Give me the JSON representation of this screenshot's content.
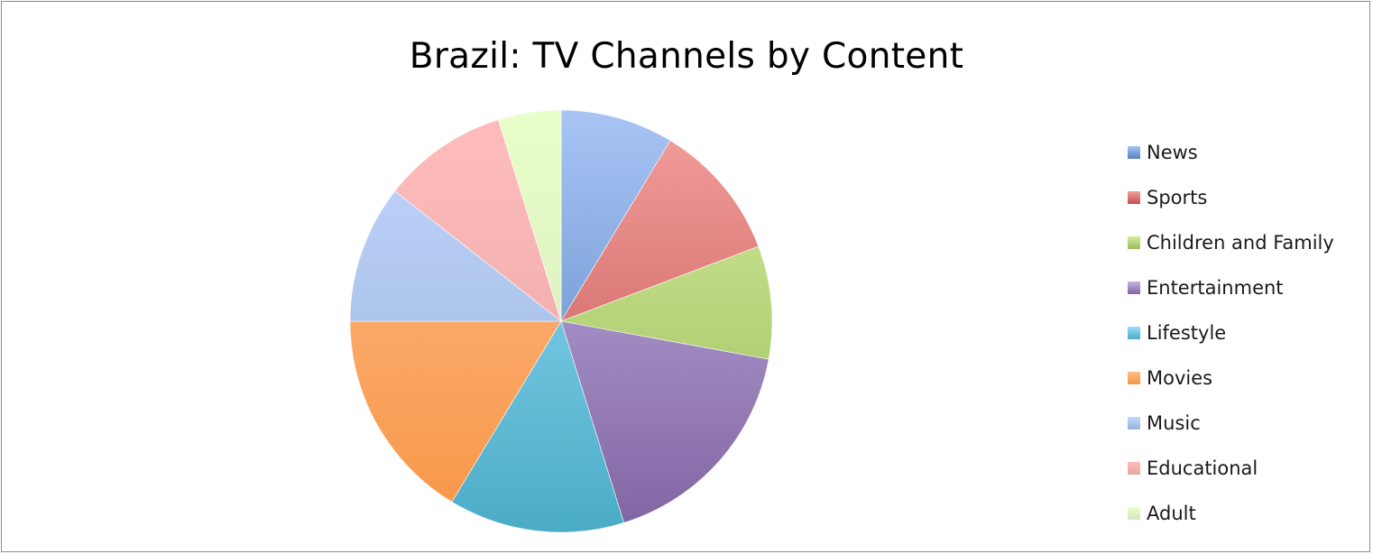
{
  "chart_data": {
    "type": "pie",
    "title": "Brazil: TV Channels by Content",
    "legend_position": "right",
    "series": [
      {
        "name": "News",
        "value": 9.0,
        "color": "#4f81bd",
        "light": "#a9c4f5"
      },
      {
        "name": "Sports",
        "value": 11.0,
        "color": "#c0504d",
        "light": "#f4a09e"
      },
      {
        "name": "Children and Family",
        "value": 9.0,
        "color": "#9bbb59",
        "light": "#d3ed9c"
      },
      {
        "name": "Entertainment",
        "value": 18.0,
        "color": "#8064a2",
        "light": "#c4b4e4"
      },
      {
        "name": "Lifestyle",
        "value": 14.0,
        "color": "#4bacc6",
        "light": "#99defa"
      },
      {
        "name": "Movies",
        "value": 17.0,
        "color": "#f79646",
        "light": "#ffbc8c"
      },
      {
        "name": "Music",
        "value": 11.0,
        "color": "#95b3d7",
        "light": "#c4d6ff"
      },
      {
        "name": "Educational",
        "value": 10.0,
        "color": "#e6a6a5",
        "light": "#ffbcbc"
      },
      {
        "name": "Adult",
        "value": 5.0,
        "color": "#d7e4bd",
        "light": "#e8ffc8"
      }
    ]
  }
}
